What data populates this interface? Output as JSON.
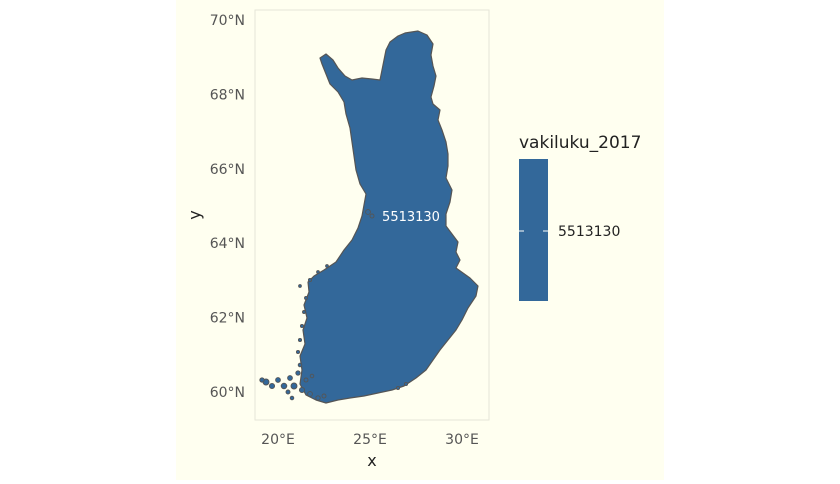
{
  "map": {
    "xlabel": "x",
    "ylabel": "y",
    "x_ticks": [
      {
        "label": "20°E",
        "lon": 20
      },
      {
        "label": "25°E",
        "lon": 25
      },
      {
        "label": "30°E",
        "lon": 30
      }
    ],
    "y_ticks": [
      {
        "label": "70°N",
        "lat": 70
      },
      {
        "label": "68°N",
        "lat": 68
      },
      {
        "label": "66°N",
        "lat": 66
      },
      {
        "label": "64°N",
        "lat": 64
      },
      {
        "label": "62°N",
        "lat": 62
      },
      {
        "label": "60°N",
        "lat": 60
      }
    ],
    "region_label": "5513130",
    "fill_color": "#33689A",
    "border_color": "#555555",
    "background_color": "#FFFFF0"
  },
  "legend": {
    "title": "vakiluku_2017",
    "value_label": "5513130",
    "color": "#33689A"
  }
}
